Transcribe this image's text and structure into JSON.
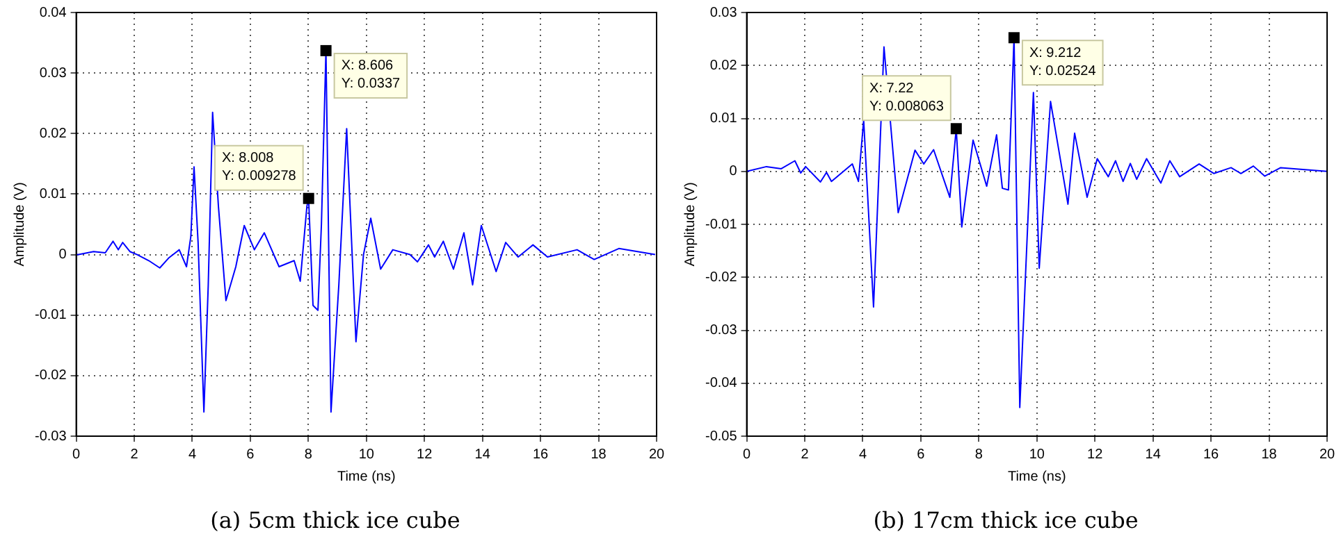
{
  "chart_data": [
    {
      "type": "line",
      "title": "(a) 5cm thick ice cube",
      "xlabel": "Time (ns)",
      "ylabel": "Amplitude (V)",
      "xlim": [
        0,
        20
      ],
      "xticks": [
        0,
        2,
        4,
        6,
        8,
        10,
        12,
        14,
        16,
        18,
        20
      ],
      "ylim": [
        -0.03,
        0.04
      ],
      "yticks": [
        -0.03,
        -0.02,
        -0.01,
        0,
        0.01,
        0.02,
        0.03,
        0.04
      ],
      "grid": true,
      "legend": false,
      "annotations": [
        {
          "text": "X: 8.008\nY: 0.009278",
          "x": 8.008,
          "y": 0.009278
        },
        {
          "text": "X: 8.606\nY: 0.0337",
          "x": 8.606,
          "y": 0.0337
        }
      ],
      "series": [
        {
          "color": "#0000ff",
          "x": [
            0,
            0.08,
            0.6,
            1.0,
            1.27,
            1.45,
            1.6,
            1.85,
            2.1,
            2.5,
            2.88,
            3.2,
            3.55,
            3.8,
            3.95,
            4.06,
            4.2,
            4.4,
            4.55,
            4.7,
            4.9,
            5.16,
            5.5,
            5.79,
            6.14,
            6.48,
            6.99,
            7.51,
            7.72,
            7.95,
            8.008,
            8.16,
            8.33,
            8.45,
            8.606,
            8.78,
            9.05,
            9.32,
            9.64,
            9.9,
            10.15,
            10.49,
            10.91,
            11.5,
            11.76,
            12.14,
            12.35,
            12.65,
            13.0,
            13.36,
            13.66,
            13.96,
            14.47,
            14.8,
            15.23,
            15.74,
            16.24,
            17.26,
            17.85,
            18.7,
            19.95
          ],
          "values": [
            0,
            0,
            0.0005,
            0.0003,
            0.0022,
            0.0008,
            0.002,
            0.0005,
            0,
            -0.001,
            -0.0022,
            -0.0005,
            0.0008,
            -0.002,
            0.003,
            0.0145,
            0.002,
            -0.026,
            -0.005,
            0.0235,
            0.008,
            -0.0076,
            -0.002,
            0.0048,
            0.0008,
            0.0036,
            -0.002,
            -0.001,
            -0.0044,
            0.008,
            0.009278,
            -0.0084,
            -0.0092,
            0.005,
            0.0337,
            -0.026,
            -0.005,
            0.0208,
            -0.0144,
            0,
            0.006,
            -0.0024,
            0.0008,
            0,
            -0.0012,
            0.0016,
            -0.0004,
            0.0022,
            -0.0024,
            0.0036,
            -0.005,
            0.0048,
            -0.0028,
            0.002,
            -0.0004,
            0.0016,
            -0.0004,
            0.0008,
            -0.0008,
            0.001,
            0
          ]
        }
      ]
    },
    {
      "type": "line",
      "title": "(b) 17cm thick ice cube",
      "xlabel": "Time (ns)",
      "ylabel": "Amplitude (V)",
      "xlim": [
        0,
        20
      ],
      "xticks": [
        0,
        2,
        4,
        6,
        8,
        10,
        12,
        14,
        16,
        18,
        20
      ],
      "ylim": [
        -0.05,
        0.03
      ],
      "yticks": [
        -0.05,
        -0.04,
        -0.03,
        -0.02,
        -0.01,
        0,
        0.01,
        0.02,
        0.03
      ],
      "grid": true,
      "legend": false,
      "annotations": [
        {
          "text": "X: 7.22\nY: 0.008063",
          "x": 7.22,
          "y": 0.008063
        },
        {
          "text": "X: 9.212\nY: 0.02524",
          "x": 9.212,
          "y": 0.02524
        }
      ],
      "series": [
        {
          "color": "#0000ff",
          "x": [
            0,
            0.68,
            1.19,
            1.66,
            1.86,
            2.03,
            2.54,
            2.75,
            2.92,
            3.64,
            3.85,
            4.03,
            4.37,
            4.73,
            5.22,
            5.8,
            6.1,
            6.44,
            7.0,
            7.22,
            7.41,
            7.8,
            8.27,
            8.61,
            8.81,
            9.02,
            9.212,
            9.41,
            9.88,
            10.08,
            10.47,
            11.07,
            11.3,
            11.73,
            12.08,
            12.46,
            12.71,
            12.97,
            13.22,
            13.44,
            13.78,
            14.27,
            14.58,
            14.92,
            15.59,
            16.1,
            16.69,
            17.03,
            17.46,
            17.85,
            18.4,
            20
          ],
          "values": [
            0,
            0.0009,
            0.0005,
            0.002,
            -0.0003,
            0.0009,
            -0.002,
            -0.0002,
            -0.0019,
            0.0014,
            -0.0019,
            0.0097,
            -0.0256,
            0.0235,
            -0.0078,
            0.004,
            0.0014,
            0.0041,
            -0.0049,
            0.008063,
            -0.0105,
            0.0059,
            -0.0028,
            0.0069,
            -0.0032,
            -0.0035,
            0.02524,
            -0.0446,
            0.0149,
            -0.0183,
            0.0132,
            -0.0062,
            0.0072,
            -0.0049,
            0.0024,
            -0.001,
            0.002,
            -0.0019,
            0.0015,
            -0.0015,
            0.0024,
            -0.0022,
            0.002,
            -0.001,
            0.0014,
            -0.0004,
            0.0007,
            -0.0004,
            0.001,
            -0.0009,
            0.0007,
            0
          ]
        }
      ]
    }
  ]
}
